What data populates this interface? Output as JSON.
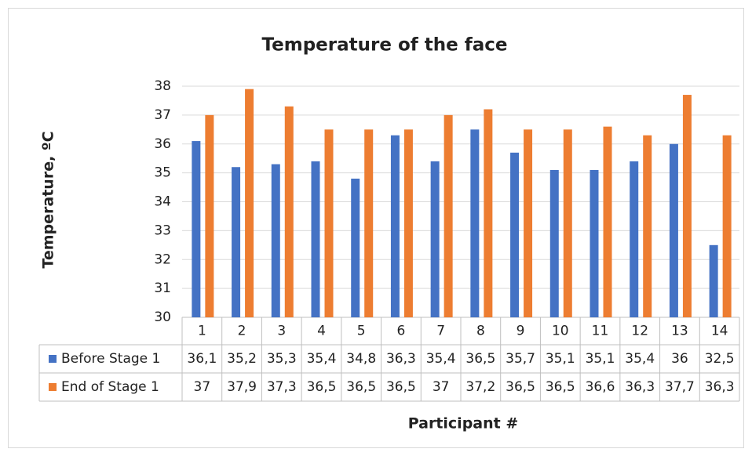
{
  "chart_data": {
    "type": "bar",
    "title": "Temperature of the face",
    "y_label": "Temperature, ºC",
    "x_label": "Participant #",
    "categories": [
      "1",
      "2",
      "3",
      "4",
      "5",
      "6",
      "7",
      "8",
      "9",
      "10",
      "11",
      "12",
      "13",
      "14"
    ],
    "series": [
      {
        "name": "Before Stage 1",
        "color": "#4472c4",
        "values": [
          36.1,
          35.2,
          35.3,
          35.4,
          34.8,
          36.3,
          35.4,
          36.5,
          35.7,
          35.1,
          35.1,
          35.4,
          36,
          32.5
        ],
        "value_labels": [
          "36,1",
          "35,2",
          "35,3",
          "35,4",
          "34,8",
          "36,3",
          "35,4",
          "36,5",
          "35,7",
          "35,1",
          "35,1",
          "35,4",
          "36",
          "32,5"
        ]
      },
      {
        "name": "End of Stage 1",
        "color": "#ed7d31",
        "values": [
          37,
          37.9,
          37.3,
          36.5,
          36.5,
          36.5,
          37,
          37.2,
          36.5,
          36.5,
          36.6,
          36.3,
          37.7,
          36.3
        ],
        "value_labels": [
          "37",
          "37,9",
          "37,3",
          "36,5",
          "36,5",
          "36,5",
          "37",
          "37,2",
          "36,5",
          "36,5",
          "36,6",
          "36,3",
          "37,7",
          "36,3"
        ]
      }
    ],
    "ylim": [
      30,
      38
    ],
    "yticks": [
      30,
      31,
      32,
      33,
      34,
      35,
      36,
      37,
      38
    ],
    "grid": true
  }
}
